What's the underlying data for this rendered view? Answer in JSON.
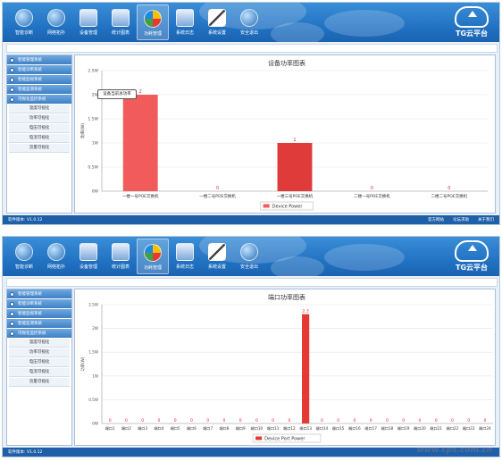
{
  "nav": {
    "items": [
      {
        "label": "智能诊断",
        "icon": "globe-icon"
      },
      {
        "label": "网络拓扑",
        "icon": "network-globe-icon"
      },
      {
        "label": "设备管理",
        "icon": "device-icon"
      },
      {
        "label": "统计图表",
        "icon": "chart-icon"
      },
      {
        "label": "功耗管理",
        "icon": "pie-icon"
      },
      {
        "label": "系统日志",
        "icon": "log-icon"
      },
      {
        "label": "系统设置",
        "icon": "tools-icon"
      },
      {
        "label": "安全退出",
        "icon": "power-icon"
      }
    ],
    "active_index": 4
  },
  "logo": {
    "text": "TG云平台"
  },
  "sidebar": {
    "headers": [
      "智能管理系统",
      "智能诊断系统",
      "智能监视系统",
      "智能监测系统",
      "可视化监控系统"
    ],
    "subitems": [
      "温度可视化",
      "功率可视化",
      "电压可视化",
      "电流可视化",
      "流量可视化"
    ]
  },
  "footer": {
    "version": "软件版本: V1.0.12",
    "links": [
      "官方网站",
      "论坛求助",
      "关于我们"
    ]
  },
  "tooltip": {
    "text": "设备当前总功率"
  },
  "watermark": {
    "text": "www.cps.com.cn"
  },
  "chart_data": [
    {
      "type": "bar",
      "title": "设备功率图表",
      "ylabel": "功率(W)",
      "categories": [
        "一楼一号POE交换机",
        "一楼二号POE交换机",
        "一楼三号POE交换机",
        "二楼一号POE交换机",
        "二楼二号POE交换机"
      ],
      "series": [
        {
          "name": "Device Power",
          "values": [
            2,
            0,
            1,
            0,
            0
          ]
        }
      ],
      "yticks": [
        "0W",
        "0.5W",
        "1W",
        "1.5W",
        "2W",
        "2.5W"
      ],
      "ylim": [
        0,
        2.5
      ],
      "color": "#f15b5b",
      "highlight_color": "#e03b3b",
      "legend_position": "bottom"
    },
    {
      "type": "bar",
      "title": "端口功率图表",
      "ylabel": "功率(W)",
      "categories": [
        "端口1",
        "端口2",
        "端口3",
        "端口4",
        "端口5",
        "端口6",
        "端口7",
        "端口8",
        "端口9",
        "端口10",
        "端口11",
        "端口12",
        "端口13",
        "端口14",
        "端口15",
        "端口16",
        "端口17",
        "端口18",
        "端口19",
        "端口20",
        "端口21",
        "端口22",
        "端口23",
        "端口24"
      ],
      "series": [
        {
          "name": "Device Port Power",
          "values": [
            0,
            0,
            0,
            0,
            0,
            0,
            0,
            0,
            0,
            0,
            0,
            0,
            2.3,
            0,
            0,
            0,
            0,
            0,
            0,
            0,
            0,
            0,
            0,
            0
          ]
        }
      ],
      "yticks": [
        "0W",
        "0.5W",
        "1W",
        "1.5W",
        "2W",
        "2.5W"
      ],
      "ylim": [
        0,
        2.5
      ],
      "color": "#e53935",
      "legend_position": "bottom"
    }
  ]
}
